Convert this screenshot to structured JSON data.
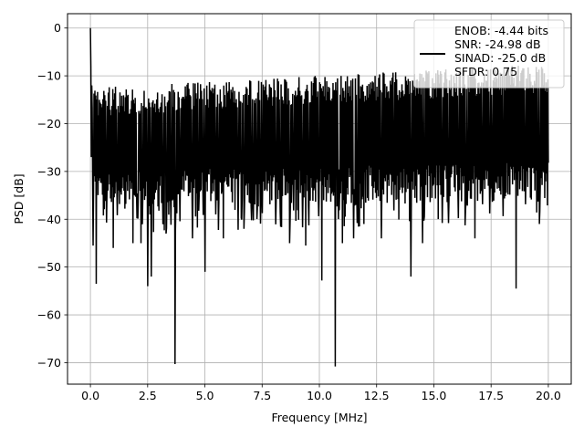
{
  "chart_data": {
    "type": "line",
    "title": "",
    "xlabel": "Frequency [MHz]",
    "ylabel": "PSD [dB]",
    "xlim": [
      -1.0,
      21.0
    ],
    "ylim": [
      -74.5,
      3.0
    ],
    "grid": true,
    "legend_placement": "upper-right",
    "xticks": [
      0.0,
      2.5,
      5.0,
      7.5,
      10.0,
      12.5,
      15.0,
      17.5,
      20.0
    ],
    "xtick_labels": [
      "0.0",
      "2.5",
      "5.0",
      "7.5",
      "10.0",
      "12.5",
      "15.0",
      "17.5",
      "20.0"
    ],
    "yticks": [
      0,
      -10,
      -20,
      -30,
      -40,
      -50,
      -60,
      -70
    ],
    "ytick_labels": [
      "0",
      "−10",
      "−20",
      "−30",
      "−40",
      "−50",
      "−60",
      "−70"
    ],
    "legend_lines": [
      "ENOB: -4.44 bits",
      "SNR: -24.98 dB",
      "SINAD: -25.0 dB",
      "SFDR: 0.75"
    ],
    "series": [
      {
        "color": "#000000",
        "noise_band": {
          "x_range": [
            0.0,
            20.0
          ],
          "upper_envelope_db": [
            -12.5,
            -7.5
          ],
          "lower_envelope_db": [
            -38.0,
            -36.0
          ],
          "points": 1024
        },
        "peak": {
          "x": 0.0,
          "y": 0.0
        },
        "dips": [
          {
            "x": 0.12,
            "y": -45.5
          },
          {
            "x": 0.25,
            "y": -53.5
          },
          {
            "x": 1.0,
            "y": -46.0
          },
          {
            "x": 1.85,
            "y": -45.0
          },
          {
            "x": 2.2,
            "y": -45.0
          },
          {
            "x": 2.5,
            "y": -54.0
          },
          {
            "x": 2.65,
            "y": -52.0
          },
          {
            "x": 3.3,
            "y": -43.0
          },
          {
            "x": 3.7,
            "y": -70.3
          },
          {
            "x": 4.45,
            "y": -44.0
          },
          {
            "x": 5.0,
            "y": -51.0
          },
          {
            "x": 5.8,
            "y": -44.0
          },
          {
            "x": 6.7,
            "y": -42.0
          },
          {
            "x": 8.7,
            "y": -45.0
          },
          {
            "x": 9.4,
            "y": -45.5
          },
          {
            "x": 10.1,
            "y": -52.8
          },
          {
            "x": 10.7,
            "y": -70.8
          },
          {
            "x": 11.0,
            "y": -45.0
          },
          {
            "x": 11.5,
            "y": -44.0
          },
          {
            "x": 12.7,
            "y": -44.0
          },
          {
            "x": 14.0,
            "y": -52.0
          },
          {
            "x": 14.5,
            "y": -45.0
          },
          {
            "x": 16.8,
            "y": -44.0
          },
          {
            "x": 18.6,
            "y": -54.5
          },
          {
            "x": 19.6,
            "y": -41.0
          }
        ]
      }
    ]
  }
}
